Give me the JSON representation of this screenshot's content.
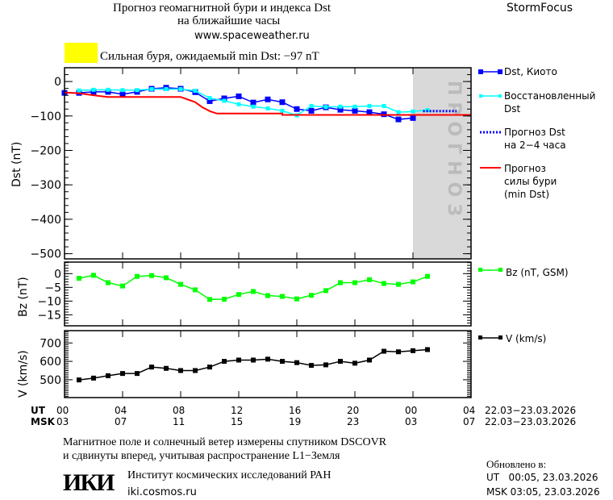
{
  "header": {
    "title_line1": "Прогноз геомагнитной бури и индекса Dst",
    "title_line2": "на ближайшие часы",
    "website": "www.spaceweather.ru",
    "brand": "StormFocus"
  },
  "status": {
    "color": "#ffff00",
    "text": "Сильная буря, ожидаемый min Dst: −97 nT"
  },
  "forecast_zone_label": "ПРОГНОЗ",
  "legend": {
    "dst_kyoto": "Dst, Киото",
    "dst_restored_1": "Восстановленный",
    "dst_restored_2": "Dst",
    "dst_forecast_1": "Прогноз Dst",
    "dst_forecast_2": "на 2−4 часа",
    "storm_forecast_1": "Прогноз",
    "storm_forecast_2": "силы бури",
    "storm_forecast_3": "(min Dst)",
    "bz": "Bz (nT, GSM)",
    "v": "V (km/s)"
  },
  "x_axis": {
    "ut_label": "UT",
    "msk_label": "MSK",
    "ut_ticks": [
      "00",
      "04",
      "08",
      "12",
      "16",
      "20",
      "00",
      "04"
    ],
    "msk_ticks": [
      "03",
      "07",
      "11",
      "15",
      "19",
      "23",
      "03",
      "07"
    ],
    "ut_dates": "22.03−23.03.2026",
    "msk_dates": "22.03−23.03.2026"
  },
  "chart_data": [
    {
      "type": "line",
      "ylabel": "Dst (nT)",
      "ylim": [
        -515,
        40
      ],
      "xlim_hours": [
        0,
        28
      ],
      "yticks": [
        "0",
        "−100",
        "−200",
        "−300",
        "−400",
        "−500"
      ],
      "ytick_values": [
        0,
        -100,
        -200,
        -300,
        -400,
        -500
      ],
      "forecast_region_hours": [
        24,
        28
      ],
      "series": [
        {
          "name": "Dst, Киото",
          "color": "#0000ff",
          "x": [
            0,
            1,
            2,
            3,
            4,
            5,
            6,
            7,
            8,
            9,
            10,
            11,
            12,
            13,
            14,
            15,
            16,
            17,
            18,
            19,
            20,
            21,
            22,
            23,
            24
          ],
          "y": [
            -33,
            -33,
            -30,
            -30,
            -37,
            -30,
            -21,
            -18,
            -21,
            -31,
            -57,
            -49,
            -43,
            -61,
            -52,
            -60,
            -80,
            -85,
            -75,
            -82,
            -85,
            -89,
            -95,
            -110,
            -106
          ]
        },
        {
          "name": "Восстановленный Dst",
          "color": "#00ffff",
          "x": [
            1,
            2,
            3,
            4,
            5,
            6,
            7,
            8,
            9,
            10,
            11,
            12,
            13,
            14,
            15,
            16,
            17,
            18,
            19,
            20,
            21,
            22,
            23,
            24,
            25
          ],
          "y": [
            -26,
            -24,
            -24,
            -25,
            -25,
            -22,
            -22,
            -22,
            -27,
            -48,
            -56,
            -66,
            -73,
            -78,
            -85,
            -98,
            -71,
            -74,
            -73,
            -73,
            -71,
            -71,
            -89,
            -87,
            -83
          ]
        },
        {
          "name": "Прогноз Dst на 2−4 часа",
          "color": "#0000ff",
          "style": "dotted",
          "x": [
            24.7,
            27
          ],
          "y": [
            -86,
            -86
          ]
        },
        {
          "name": "Прогноз силы бури (min Dst)",
          "color": "#ff0000",
          "x": [
            0,
            1,
            2,
            3,
            8,
            9,
            9.5,
            10,
            10.5,
            15,
            15,
            28
          ],
          "y": [
            -32,
            -34,
            -40,
            -45,
            -45,
            -60,
            -75,
            -86,
            -93,
            -93,
            -97,
            -97
          ]
        }
      ]
    },
    {
      "type": "line",
      "ylabel": "Bz (nT)",
      "ylim": [
        -19,
        4.2
      ],
      "yticks": [
        "0",
        "−5",
        "−10",
        "−15"
      ],
      "ytick_values": [
        0,
        -5,
        -10,
        -15
      ],
      "series": [
        {
          "name": "Bz (nT, GSM)",
          "color": "#00ff00",
          "x": [
            1,
            2,
            3,
            4,
            5,
            6,
            7,
            8,
            9,
            10,
            11,
            12,
            13,
            14,
            15,
            16,
            17,
            18,
            19,
            20,
            21,
            22,
            23,
            24,
            25
          ],
          "y": [
            -1.7,
            -0.6,
            -3.3,
            -4.5,
            -1.0,
            -0.7,
            -1.5,
            -3.9,
            -5.9,
            -9.4,
            -9.3,
            -7.6,
            -6.5,
            -8.0,
            -8.3,
            -9.2,
            -7.9,
            -6.2,
            -3.3,
            -3.3,
            -2.2,
            -3.6,
            -3.9,
            -3.0,
            -1.0
          ]
        }
      ]
    },
    {
      "type": "line",
      "ylabel": "V (km/s)",
      "ylim": [
        403,
        767
      ],
      "yticks": [
        "700",
        "600",
        "500"
      ],
      "ytick_values": [
        700,
        600,
        500
      ],
      "series": [
        {
          "name": "V (km/s)",
          "color": "#000000",
          "x": [
            1,
            2,
            3,
            4,
            5,
            6,
            7,
            8,
            9,
            10,
            11,
            12,
            13,
            14,
            15,
            16,
            17,
            18,
            19,
            20,
            21,
            22,
            23,
            24,
            25
          ],
          "y": [
            499,
            509,
            522,
            534,
            534,
            569,
            562,
            550,
            550,
            569,
            600,
            607,
            607,
            612,
            600,
            593,
            578,
            581,
            600,
            590,
            607,
            655,
            652,
            658,
            664
          ]
        }
      ]
    }
  ],
  "footer": {
    "note_line1": "Магнитное поле и солнечный ветер измерены спутником DSCOVR",
    "note_line2": "и сдвинуты вперед, учитывая распространение L1−Земля",
    "logo": "ИКИ",
    "institute": "Институт космических исследований РАН",
    "institute_url": "iki.cosmos.ru",
    "updated_label": "Обновлено в:",
    "updated_ut": "UT   00:05, 23.03.2026",
    "updated_msk": "MSK 03:05, 23.03.2026"
  }
}
